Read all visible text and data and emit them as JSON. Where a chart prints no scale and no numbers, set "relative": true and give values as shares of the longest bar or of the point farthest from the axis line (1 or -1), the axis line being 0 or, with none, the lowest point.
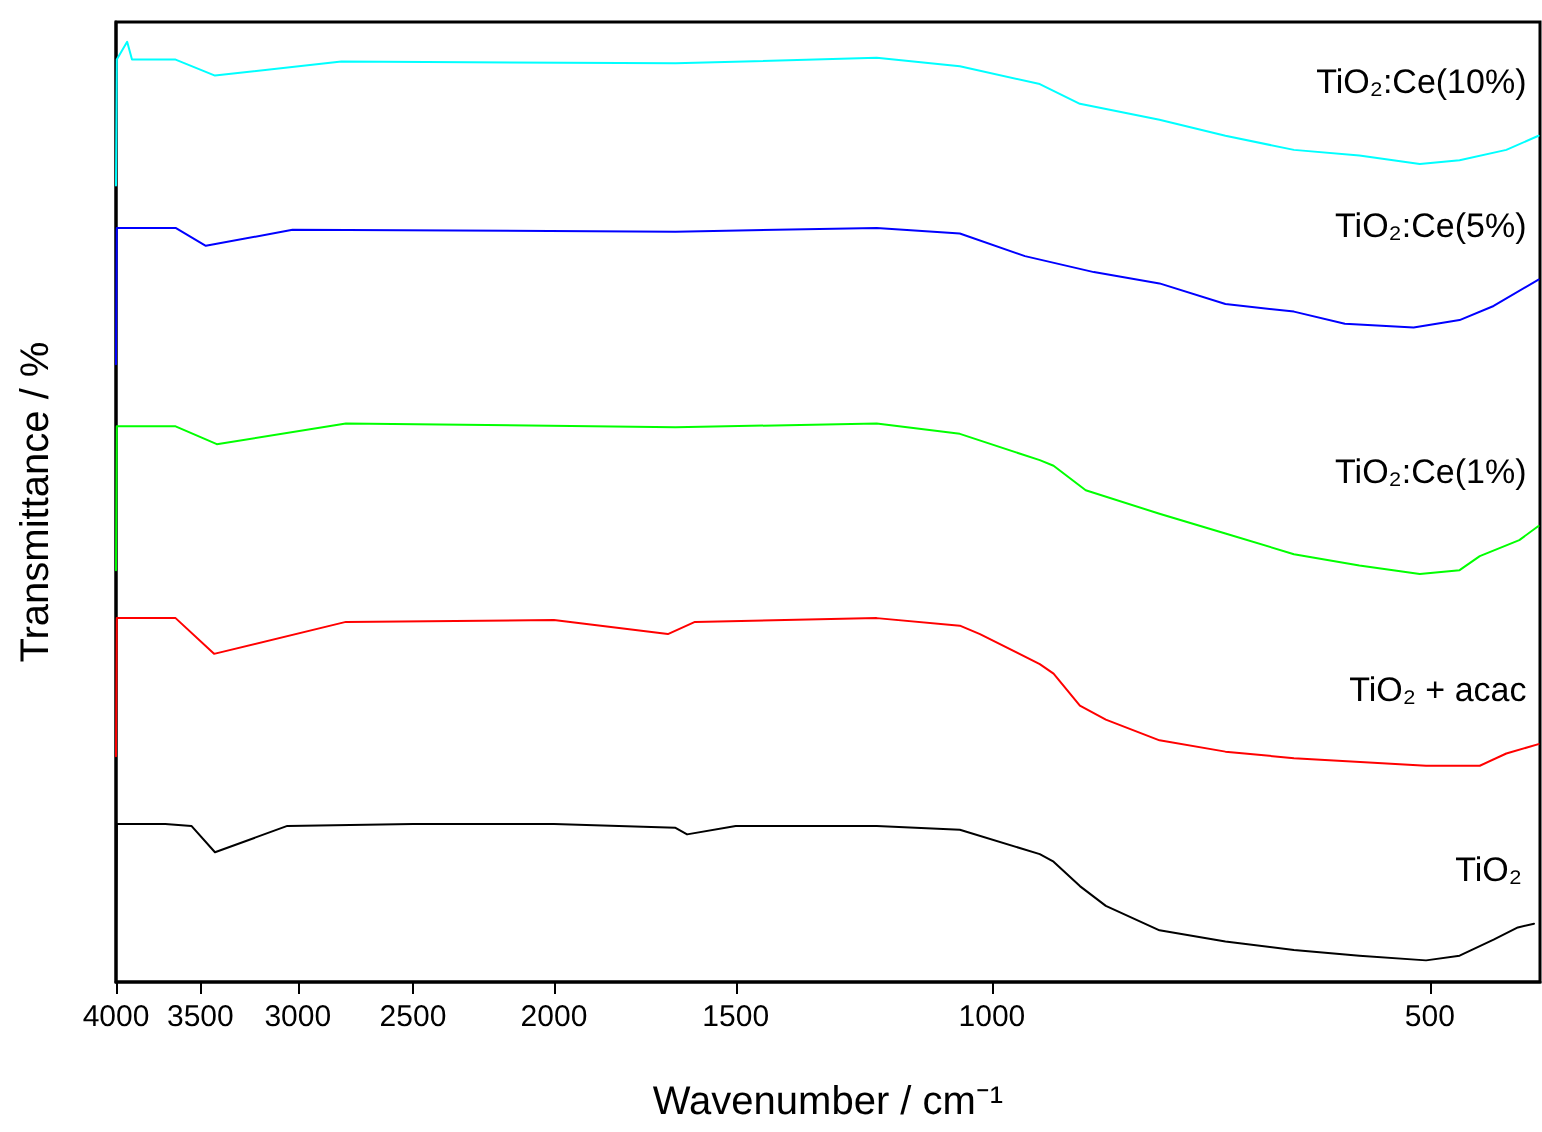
{
  "chart_data": {
    "type": "line",
    "relative": true,
    "xlabel": "Wavenumber / cm⁻¹",
    "ylabel": "Transmittance / %",
    "log": "x",
    "xlim": [
      4000,
      420
    ],
    "xticks": [
      4000,
      3500,
      3000,
      2500,
      2000,
      1500,
      1000,
      500
    ],
    "grid": false,
    "legend": false,
    "marker": "none",
    "line_style": "solid",
    "series": [
      {
        "name": "TiO₂",
        "color": "#000000",
        "x": [
          4000,
          3995,
          3700,
          3550,
          3420,
          3050,
          2500,
          2000,
          1650,
          1620,
          1500,
          1200,
          1052,
          927,
          907,
          870,
          835,
          767,
          691,
          620,
          559,
          503,
          477,
          452,
          435,
          424
        ],
        "values": [
          0.049,
          0.168,
          0.168,
          0.166,
          0.138,
          0.166,
          0.168,
          0.168,
          0.164,
          0.157,
          0.166,
          0.166,
          0.162,
          0.136,
          0.128,
          0.102,
          0.081,
          0.055,
          0.043,
          0.034,
          0.028,
          0.023,
          0.028,
          0.045,
          0.058,
          0.062
        ]
      },
      {
        "name": "TiO₂ + acac",
        "color": "#ff0000",
        "x": [
          4000,
          3995,
          3640,
          3425,
          2780,
          2000,
          1670,
          1600,
          1200,
          1052,
          1019,
          927,
          907,
          870,
          835,
          767,
          691,
          620,
          503,
          462,
          443,
          421
        ],
        "values": [
          0.24,
          0.387,
          0.387,
          0.349,
          0.383,
          0.385,
          0.37,
          0.383,
          0.387,
          0.379,
          0.37,
          0.338,
          0.328,
          0.294,
          0.279,
          0.257,
          0.245,
          0.238,
          0.23,
          0.23,
          0.243,
          0.253
        ]
      },
      {
        "name": "TiO₂:Ce(1%)",
        "color": "#00ff00",
        "x": [
          4000,
          3995,
          3640,
          3410,
          2780,
          1650,
          1200,
          1052,
          927,
          907,
          862,
          767,
          691,
          620,
          559,
          508,
          477,
          462,
          434,
          421
        ],
        "values": [
          0.438,
          0.591,
          0.591,
          0.572,
          0.594,
          0.59,
          0.594,
          0.583,
          0.555,
          0.549,
          0.523,
          0.498,
          0.477,
          0.455,
          0.443,
          0.434,
          0.438,
          0.453,
          0.47,
          0.485
        ]
      },
      {
        "name": "TiO₂:Ce(5%)",
        "color": "#0000ff",
        "x": [
          4000,
          3995,
          3640,
          3470,
          3025,
          1650,
          1200,
          1052,
          949,
          851,
          767,
          691,
          620,
          572,
          513,
          477,
          452,
          421
        ],
        "values": [
          0.657,
          0.802,
          0.802,
          0.783,
          0.8,
          0.798,
          0.802,
          0.796,
          0.772,
          0.755,
          0.743,
          0.721,
          0.713,
          0.7,
          0.696,
          0.704,
          0.719,
          0.747
        ]
      },
      {
        "name": "TiO₂:Ce(10%)",
        "color": "#00ffff",
        "x": [
          4000,
          3995,
          3930,
          3900,
          3640,
          3420,
          2800,
          1650,
          1200,
          1052,
          927,
          870,
          767,
          691,
          620,
          559,
          508,
          477,
          443,
          421
        ],
        "values": [
          0.847,
          0.981,
          1.0,
          0.981,
          0.981,
          0.964,
          0.979,
          0.977,
          0.983,
          0.974,
          0.955,
          0.934,
          0.917,
          0.9,
          0.885,
          0.879,
          0.87,
          0.874,
          0.885,
          0.9
        ]
      }
    ]
  }
}
